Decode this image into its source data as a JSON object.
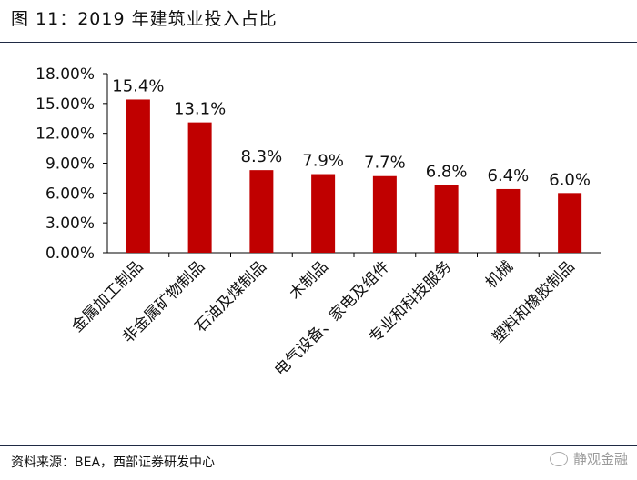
{
  "header": {
    "title": "图 11：2019 年建筑业投入占比"
  },
  "footer": {
    "source": "资料来源：BEA，西部证券研发中心",
    "watermark": "静观金融"
  },
  "colors": {
    "bar": "#c00000",
    "axis": "#000000",
    "rule": "#1f2a44"
  },
  "chart_data": {
    "type": "bar",
    "title": "2019 年建筑业投入占比",
    "xlabel": "",
    "ylabel": "",
    "ylim": [
      0,
      18
    ],
    "yticks": [
      "0.00%",
      "3.00%",
      "6.00%",
      "9.00%",
      "12.00%",
      "15.00%",
      "18.00%"
    ],
    "grid": false,
    "categories": [
      "金属加工制品",
      "非金属矿物制品",
      "石油及煤制品",
      "木制品",
      "电气设备、家电及组件",
      "专业和科技服务",
      "机械",
      "塑料和橡胶制品"
    ],
    "values": [
      15.4,
      13.1,
      8.3,
      7.9,
      7.7,
      6.8,
      6.4,
      6.0
    ],
    "labels": [
      "15.4%",
      "13.1%",
      "8.3%",
      "7.9%",
      "7.7%",
      "6.8%",
      "6.4%",
      "6.0%"
    ]
  }
}
